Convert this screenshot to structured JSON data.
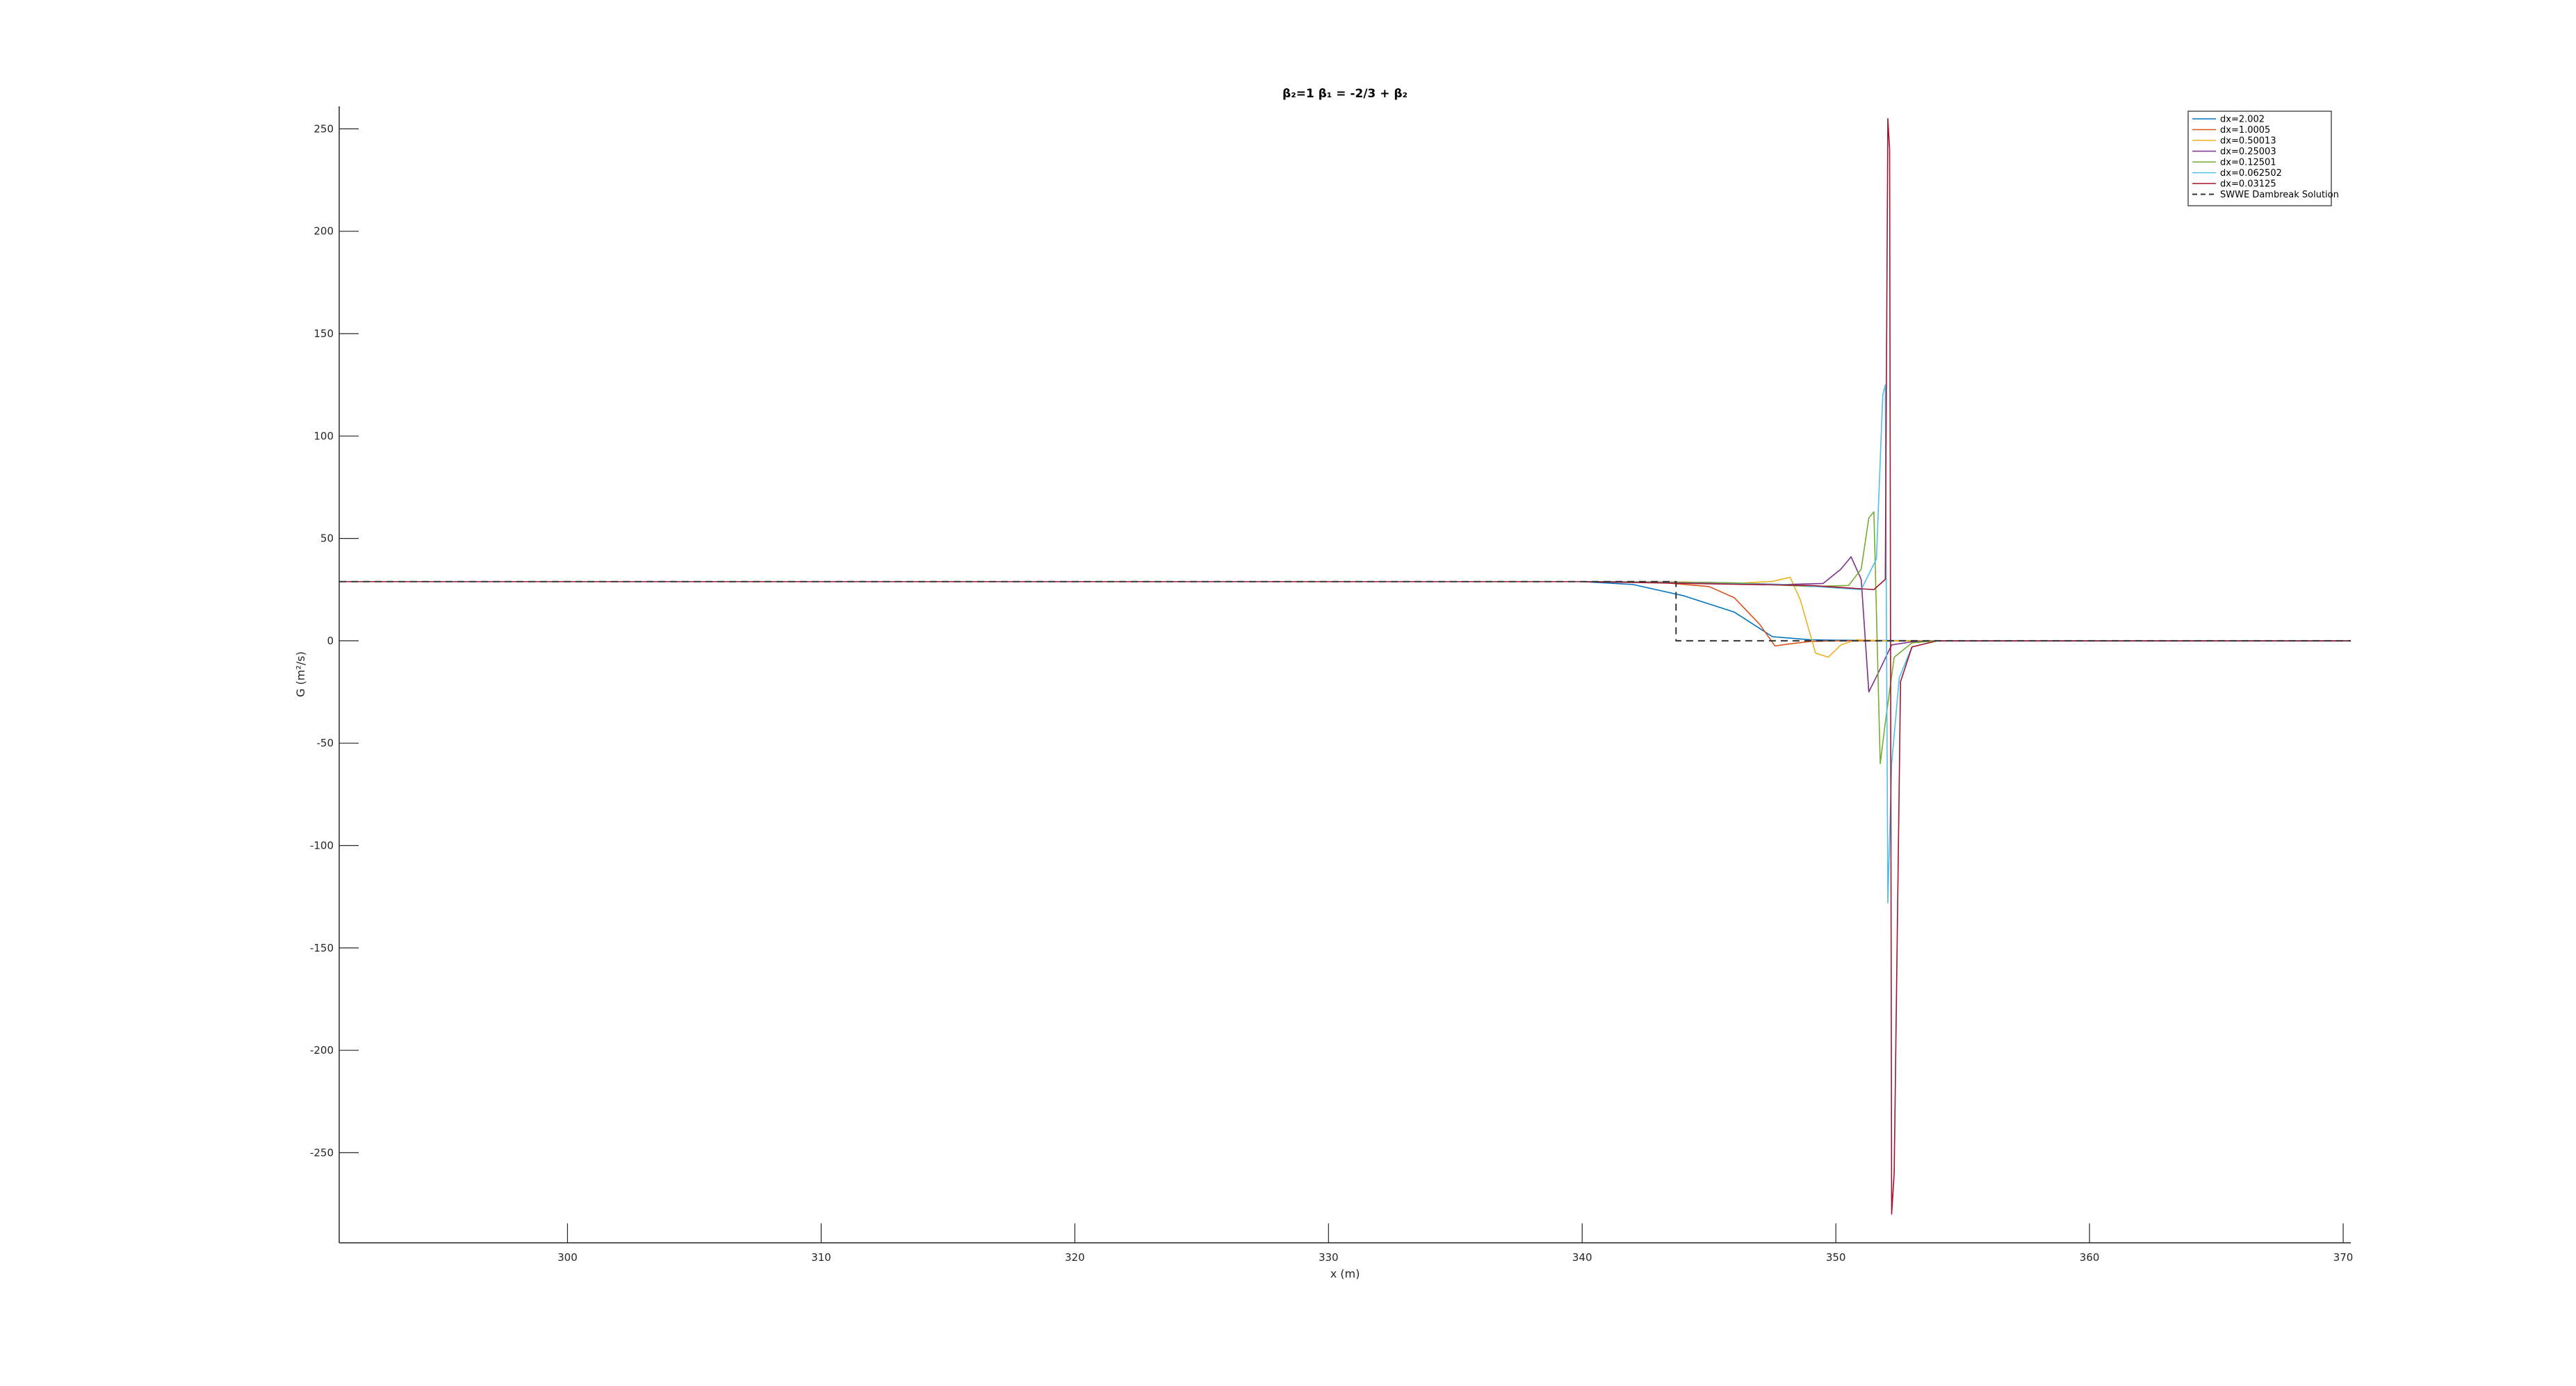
{
  "chart_data": {
    "type": "line",
    "title": "β₂=1  β₁ = -2/3 + β₂",
    "xlabel": "x (m)",
    "ylabel": "G (m²/s)",
    "xlim": [
      291,
      370.3
    ],
    "ylim": [
      -294,
      261
    ],
    "xticks": [
      300,
      310,
      320,
      330,
      340,
      350,
      360,
      370
    ],
    "yticks": [
      -250,
      -200,
      -150,
      -100,
      -50,
      0,
      50,
      100,
      150,
      200,
      250
    ],
    "grid": false,
    "legend_position": "top-right",
    "series": [
      {
        "name": "dx=2.002",
        "color": "#0072bd",
        "dash": false,
        "x": [
          291,
          340,
          342,
          344,
          346,
          347.5,
          349,
          350,
          352,
          354,
          370.3
        ],
        "y": [
          28.9,
          28.9,
          27.5,
          22,
          14,
          2,
          0.5,
          0.3,
          0.1,
          0,
          0
        ]
      },
      {
        "name": "dx=1.0005",
        "color": "#d95319",
        "dash": false,
        "x": [
          291,
          340,
          343,
          345,
          346,
          347,
          347.6,
          348.2,
          349,
          350,
          352,
          354,
          370.3
        ],
        "y": [
          28.9,
          28.9,
          28.6,
          26.5,
          21,
          8,
          -2.5,
          -1.5,
          -0.3,
          0,
          0,
          0,
          0
        ]
      },
      {
        "name": "dx=0.50013",
        "color": "#edb120",
        "dash": false,
        "x": [
          291,
          340,
          344,
          346,
          347.5,
          348.2,
          348.6,
          349.2,
          349.7,
          350.2,
          350.8,
          352,
          354,
          370.3
        ],
        "y": [
          28.9,
          28.9,
          28.7,
          28,
          29,
          31,
          20,
          -6,
          -8,
          -2,
          0.5,
          0,
          0,
          0
        ]
      },
      {
        "name": "dx=0.25003",
        "color": "#7e2f8e",
        "dash": false,
        "x": [
          291,
          340,
          345,
          348,
          349.5,
          350.2,
          350.6,
          351,
          351.3,
          351.7,
          352.2,
          353,
          354,
          370.3
        ],
        "y": [
          28.9,
          28.9,
          28.5,
          27.5,
          28,
          35,
          41,
          30,
          -25,
          -15,
          -2,
          -0.5,
          0,
          0
        ]
      },
      {
        "name": "dx=0.12501",
        "color": "#77ac30",
        "dash": false,
        "x": [
          291,
          340,
          346,
          349,
          350.5,
          351,
          351.3,
          351.5,
          351.75,
          351.95,
          352.3,
          353,
          354,
          370.3
        ],
        "y": [
          28.9,
          28.9,
          28.3,
          26.5,
          27,
          35,
          60,
          63,
          -60,
          -40,
          -8,
          -1,
          0,
          0
        ]
      },
      {
        "name": "dx=0.062502",
        "color": "#4dbeee",
        "dash": false,
        "x": [
          291,
          340,
          348,
          351,
          351.6,
          351.85,
          351.95,
          352.05,
          352.2,
          352.5,
          353,
          354,
          370.3
        ],
        "y": [
          28.9,
          28.9,
          27.5,
          25,
          40,
          120,
          125,
          -128,
          -60,
          -18,
          -3,
          0,
          0
        ]
      },
      {
        "name": "dx=0.03125",
        "color": "#a2142f",
        "dash": false,
        "x": [
          291,
          340,
          349,
          351.5,
          351.95,
          352.05,
          352.12,
          352.2,
          352.3,
          352.55,
          353,
          354,
          370.3
        ],
        "y": [
          28.9,
          28.9,
          27,
          25,
          30,
          255,
          240,
          -280,
          -260,
          -20,
          -3,
          0,
          0
        ]
      },
      {
        "name": "SWWE Dambreak Solution",
        "color": "#333333",
        "dash": true,
        "x": [
          291,
          343.7,
          343.7,
          370.3
        ],
        "y": [
          28.9,
          28.9,
          0,
          0
        ]
      }
    ]
  }
}
